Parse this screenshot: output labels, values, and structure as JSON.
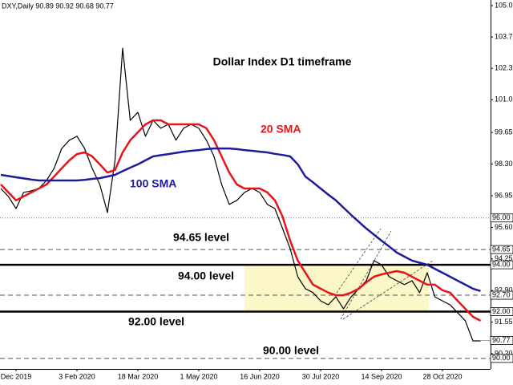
{
  "chart_data": {
    "type": "line",
    "header": "DXY,Daily  90.89 90.92 90.68 90.77",
    "title": "Dollar Index D1 timeframe",
    "categories": [
      null,
      null,
      "Dec 2019",
      null,
      null,
      null,
      null,
      null,
      null,
      null,
      "3 Feb 2020",
      null,
      null,
      null,
      null,
      null,
      null,
      null,
      "18 Mar 2020",
      null,
      null,
      null,
      null,
      null,
      null,
      null,
      "1 May 2020",
      null,
      null,
      null,
      null,
      null,
      null,
      null,
      "16 Jun 2020",
      null,
      null,
      null,
      null,
      null,
      null,
      null,
      "30 Jul 2020",
      null,
      null,
      null,
      null,
      null,
      null,
      null,
      "14 Sep 2020",
      null,
      null,
      null,
      null,
      null,
      null,
      null,
      "28 Oct 2020",
      null,
      null,
      null,
      null,
      null
    ],
    "series": [
      {
        "name": "DXY",
        "color": "#000000",
        "width": 1.2,
        "values": [
          97.26,
          96.92,
          96.4,
          97.09,
          97.16,
          97.26,
          97.6,
          98.12,
          98.97,
          99.32,
          99.49,
          98.97,
          98.12,
          97.43,
          96.23,
          98.46,
          103.25,
          100.17,
          100.51,
          99.49,
          100.17,
          99.83,
          100.0,
          99.32,
          99.83,
          100.0,
          99.83,
          99.32,
          98.63,
          97.43,
          96.58,
          96.75,
          97.09,
          97.26,
          97.09,
          96.58,
          96.4,
          95.55,
          94.69,
          93.49,
          92.98,
          92.81,
          92.46,
          92.29,
          92.63,
          92.12,
          92.63,
          92.98,
          93.32,
          94.18,
          94.0,
          93.49,
          93.32,
          93.15,
          93.32,
          92.81,
          93.66,
          92.63,
          92.46,
          92.29,
          91.95,
          91.61,
          90.75,
          90.75
        ]
      },
      {
        "name": "20 SMA",
        "color": "#e8141a",
        "width": 2.5,
        "values": [
          97.43,
          97.09,
          96.75,
          96.92,
          97.09,
          97.26,
          97.43,
          97.77,
          98.12,
          98.46,
          98.73,
          98.8,
          98.63,
          98.29,
          97.94,
          98.05,
          98.8,
          99.32,
          99.66,
          100.0,
          100.17,
          100.17,
          100.0,
          100.0,
          100.0,
          100.0,
          100.0,
          99.83,
          99.32,
          98.63,
          97.94,
          97.43,
          97.26,
          97.26,
          97.26,
          97.09,
          96.75,
          96.06,
          95.03,
          94.18,
          93.66,
          93.15,
          92.98,
          92.81,
          92.7,
          92.7,
          92.81,
          92.98,
          93.25,
          93.49,
          93.59,
          93.66,
          93.73,
          93.66,
          93.49,
          93.32,
          93.15,
          93.15,
          92.91,
          92.81,
          92.46,
          92.12,
          91.78,
          91.61
        ]
      },
      {
        "name": "100 SMA",
        "color": "#1c1c9c",
        "width": 2.5,
        "values": [
          97.84,
          97.79,
          97.74,
          97.69,
          97.64,
          97.6,
          97.6,
          97.6,
          97.6,
          97.6,
          97.6,
          97.63,
          97.67,
          97.7,
          97.77,
          97.84,
          98.0,
          98.15,
          98.29,
          98.46,
          98.63,
          98.68,
          98.73,
          98.78,
          98.83,
          98.87,
          98.9,
          98.94,
          98.97,
          98.97,
          98.97,
          98.94,
          98.9,
          98.87,
          98.83,
          98.8,
          98.74,
          98.69,
          98.63,
          98.29,
          97.77,
          97.52,
          97.26,
          97.0,
          96.75,
          96.44,
          96.13,
          95.84,
          95.55,
          95.29,
          95.03,
          94.78,
          94.52,
          94.35,
          94.18,
          94.09,
          94.0,
          93.83,
          93.66,
          93.49,
          93.32,
          93.15,
          92.98,
          92.88
        ]
      }
    ],
    "ylim": [
      89.55,
      105.31
    ],
    "yticks": [
      105.07,
      103.73,
      102.39,
      101.05,
      99.65,
      {
        "value": 98.3,
        "label": "98.30"
      },
      96.95,
      {
        "value": 95.6,
        "label": "95.60"
      },
      94.25,
      {
        "value": 92.9,
        "label": "92.90"
      },
      91.55,
      {
        "value": 90.2,
        "label": "90.20"
      }
    ],
    "levels": [
      {
        "value": 96,
        "label": "96.00",
        "style": "dotted"
      },
      {
        "value": 94.65,
        "label": "94.65",
        "style": "dashed"
      },
      {
        "value": 94,
        "label": "94.00",
        "style": "thick"
      },
      {
        "value": 92.7,
        "label": "92.70",
        "style": "dashed"
      },
      {
        "value": 92,
        "label": "92.00",
        "style": "thick"
      },
      {
        "value": 90,
        "label": "90.00",
        "style": "dashed"
      }
    ],
    "last_price": 90.77,
    "annotations": [
      "20 SMA",
      "100 SMA",
      "94.65 level",
      "94.00 level",
      "92.00 level",
      "90.00 level"
    ]
  }
}
